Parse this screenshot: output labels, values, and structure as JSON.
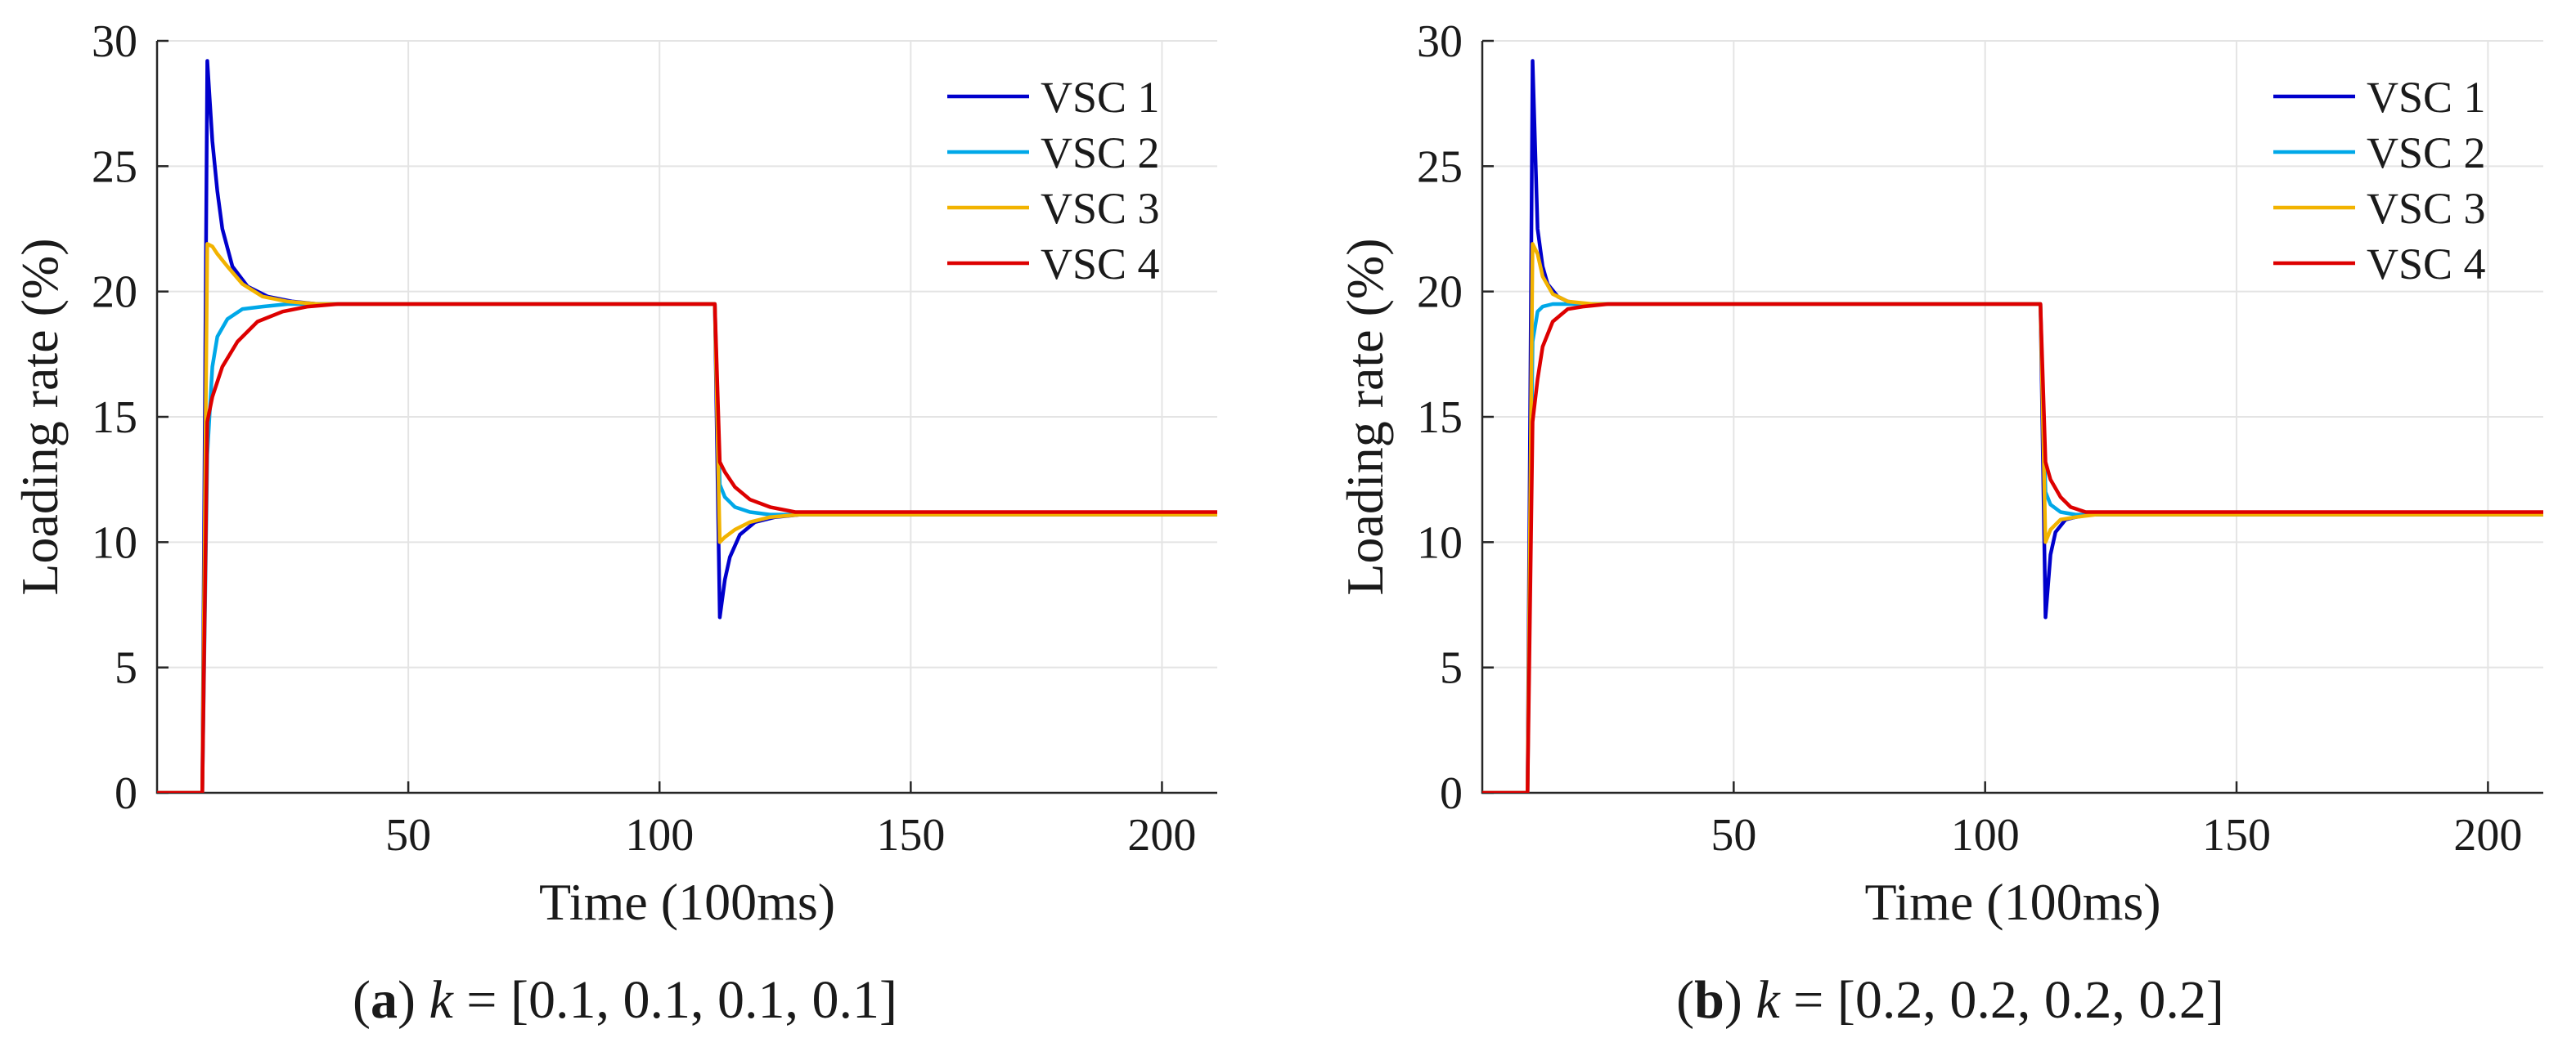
{
  "colors": {
    "VSC 1": "#0000cc",
    "VSC 2": "#00a8e8",
    "VSC 3": "#f2b300",
    "VSC 4": "#dd0000"
  },
  "chart_data": [
    {
      "type": "line",
      "caption_label": "a",
      "caption_text": " = [0.1, 0.1, 0.1, 0.1]",
      "caption_var": "k",
      "xlabel": "Time (100ms)",
      "ylabel": "Loading rate (%)",
      "xlim": [
        0,
        211
      ],
      "ylim": [
        0,
        30
      ],
      "xticks": [
        50,
        100,
        150,
        200
      ],
      "yticks": [
        0,
        5,
        10,
        15,
        20,
        25,
        30
      ],
      "grid": true,
      "legend_position": "top-right",
      "series": [
        {
          "name": "VSC 1",
          "x": [
            0,
            9,
            10,
            11,
            12,
            13,
            15,
            18,
            22,
            27,
            32,
            40,
            111,
            112,
            113,
            114,
            116,
            119,
            123,
            128,
            135,
            211
          ],
          "y": [
            0,
            0,
            29.2,
            26.0,
            24.0,
            22.5,
            21.0,
            20.2,
            19.8,
            19.6,
            19.5,
            19.5,
            19.5,
            7.0,
            8.5,
            9.4,
            10.3,
            10.8,
            11.0,
            11.1,
            11.1,
            11.1
          ]
        },
        {
          "name": "VSC 2",
          "x": [
            0,
            9,
            10,
            11,
            12,
            14,
            17,
            21,
            26,
            32,
            40,
            111,
            112,
            113,
            115,
            118,
            122,
            128,
            211
          ],
          "y": [
            0,
            0,
            13.5,
            17.0,
            18.2,
            18.9,
            19.3,
            19.4,
            19.5,
            19.5,
            19.5,
            19.5,
            12.3,
            11.8,
            11.4,
            11.2,
            11.1,
            11.1,
            11.1
          ]
        },
        {
          "name": "VSC 3",
          "x": [
            0,
            9,
            10,
            11,
            12,
            14,
            17,
            21,
            26,
            32,
            40,
            111,
            112,
            113,
            115,
            118,
            122,
            128,
            135,
            211
          ],
          "y": [
            0,
            0,
            21.9,
            21.8,
            21.5,
            21.0,
            20.3,
            19.8,
            19.6,
            19.5,
            19.5,
            19.5,
            10.0,
            10.2,
            10.5,
            10.8,
            11.0,
            11.1,
            11.1,
            11.1
          ]
        },
        {
          "name": "VSC 4",
          "x": [
            0,
            9,
            10,
            11,
            13,
            16,
            20,
            25,
            30,
            36,
            45,
            111,
            112,
            113,
            115,
            118,
            122,
            127,
            133,
            140,
            211
          ],
          "y": [
            0,
            0,
            14.8,
            15.8,
            17.0,
            18.0,
            18.8,
            19.2,
            19.4,
            19.5,
            19.5,
            19.5,
            13.2,
            12.8,
            12.2,
            11.7,
            11.4,
            11.2,
            11.2,
            11.2,
            11.2
          ]
        }
      ]
    },
    {
      "type": "line",
      "caption_label": "b",
      "caption_text": " = [0.2, 0.2, 0.2, 0.2]",
      "caption_var": "k",
      "xlabel": "Time (100ms)",
      "ylabel": "Loading rate (%)",
      "xlim": [
        0,
        211
      ],
      "ylim": [
        0,
        30
      ],
      "xticks": [
        50,
        100,
        150,
        200
      ],
      "yticks": [
        0,
        5,
        10,
        15,
        20,
        25,
        30
      ],
      "grid": true,
      "legend_position": "top-right",
      "series": [
        {
          "name": "VSC 1",
          "x": [
            0,
            9,
            10,
            11,
            12,
            13,
            15,
            17,
            20,
            25,
            111,
            112,
            113,
            114,
            116,
            118,
            121,
            125,
            211
          ],
          "y": [
            0,
            0,
            29.2,
            22.5,
            21.0,
            20.3,
            19.8,
            19.6,
            19.5,
            19.5,
            19.5,
            7.0,
            9.5,
            10.4,
            10.9,
            11.0,
            11.1,
            11.1,
            11.1
          ]
        },
        {
          "name": "VSC 2",
          "x": [
            0,
            9,
            10,
            11,
            12,
            14,
            17,
            22,
            111,
            112,
            113,
            115,
            118,
            122,
            211
          ],
          "y": [
            0,
            0,
            18.0,
            19.2,
            19.4,
            19.5,
            19.5,
            19.5,
            19.5,
            12.0,
            11.5,
            11.2,
            11.1,
            11.1,
            11.1
          ]
        },
        {
          "name": "VSC 3",
          "x": [
            0,
            9,
            10,
            11,
            12,
            14,
            17,
            22,
            111,
            112,
            113,
            115,
            118,
            122,
            211
          ],
          "y": [
            0,
            0,
            21.9,
            21.5,
            20.6,
            19.9,
            19.6,
            19.5,
            19.5,
            10.0,
            10.5,
            10.9,
            11.0,
            11.1,
            11.1
          ]
        },
        {
          "name": "VSC 4",
          "x": [
            0,
            9,
            10,
            11,
            12,
            14,
            17,
            20,
            25,
            111,
            112,
            113,
            115,
            117,
            120,
            124,
            211
          ],
          "y": [
            0,
            0,
            14.8,
            16.5,
            17.8,
            18.8,
            19.3,
            19.4,
            19.5,
            19.5,
            13.2,
            12.5,
            11.8,
            11.4,
            11.2,
            11.2,
            11.2
          ]
        }
      ]
    }
  ]
}
